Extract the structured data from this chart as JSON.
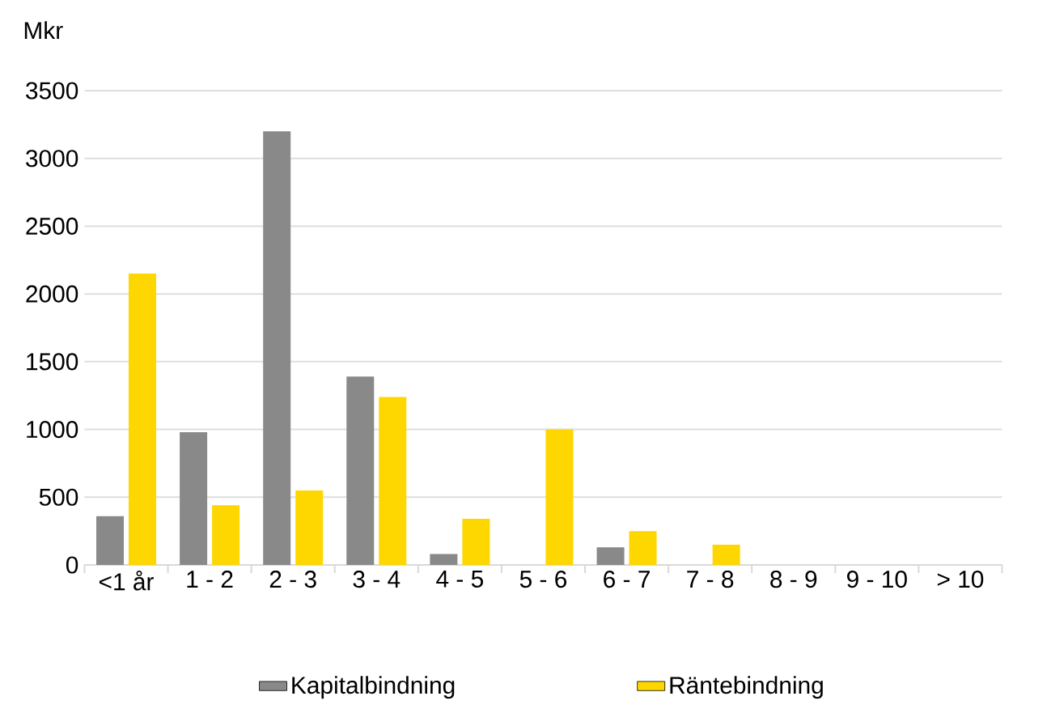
{
  "chart_data": {
    "type": "bar",
    "ylabel": "Mkr",
    "categories": [
      "<1 år",
      "1 - 2",
      "2 - 3",
      "3 - 4",
      "4 - 5",
      "5 - 6",
      "6 - 7",
      "7 - 8",
      "8 - 9",
      "9 - 10",
      "> 10"
    ],
    "series": [
      {
        "name": "Kapitalbindning",
        "color": "#898989",
        "values": [
          360,
          980,
          3200,
          1390,
          80,
          0,
          130,
          0,
          0,
          0,
          0
        ]
      },
      {
        "name": "Räntebindning",
        "color": "#ffd700",
        "values": [
          2150,
          440,
          550,
          1240,
          340,
          1000,
          250,
          150,
          0,
          0,
          0
        ]
      }
    ],
    "ylim": [
      0,
      3500
    ],
    "yticks": [
      0,
      500,
      1000,
      1500,
      2000,
      2500,
      3000,
      3500
    ],
    "grid": "y",
    "legend": "bottom"
  }
}
